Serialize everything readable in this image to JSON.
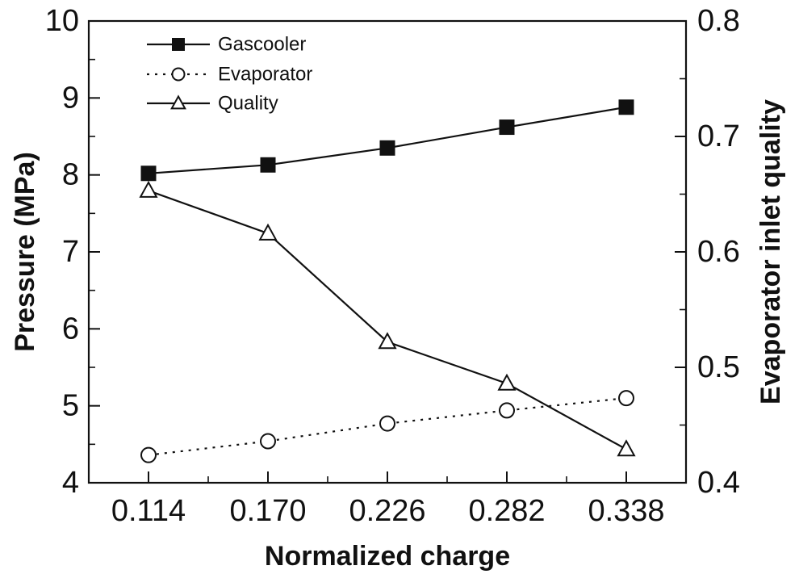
{
  "chart_data": {
    "type": "line",
    "title": "",
    "xlabel": "Normalized charge",
    "ylabel": "Pressure (MPa)",
    "y2label": "Evaporator inlet quality",
    "categories": [
      "0.114",
      "0.170",
      "0.226",
      "0.282",
      "0.338"
    ],
    "x": [
      0.114,
      0.17,
      0.226,
      0.282,
      0.338
    ],
    "xlim": [
      0.086,
      0.366
    ],
    "ylim": [
      4,
      10
    ],
    "y2lim": [
      0.4,
      0.8
    ],
    "y_ticks": [
      {
        "value": 4,
        "label": "4"
      },
      {
        "value": 5,
        "label": "5"
      },
      {
        "value": 6,
        "label": "6"
      },
      {
        "value": 7,
        "label": "7"
      },
      {
        "value": 8,
        "label": "8"
      },
      {
        "value": 9,
        "label": "9"
      },
      {
        "value": 10,
        "label": "10"
      }
    ],
    "y2_ticks": [
      {
        "value": 0.4,
        "label": "0.4"
      },
      {
        "value": 0.5,
        "label": "0.5"
      },
      {
        "value": 0.6,
        "label": "0.6"
      },
      {
        "value": 0.7,
        "label": "0.7"
      },
      {
        "value": 0.8,
        "label": "0.8"
      }
    ],
    "grid": false,
    "legend_position": "top-left",
    "series": [
      {
        "name": "Gascooler",
        "axis": "left",
        "marker": "filled-square",
        "line_style": "solid",
        "values": [
          8.02,
          8.13,
          8.35,
          8.62,
          8.88
        ]
      },
      {
        "name": "Evaporator",
        "axis": "left",
        "marker": "open-circle",
        "line_style": "dotted",
        "values": [
          4.36,
          4.54,
          4.77,
          4.94,
          5.1
        ]
      },
      {
        "name": "Quality",
        "axis": "right",
        "marker": "open-triangle",
        "line_style": "solid",
        "values": [
          0.653,
          0.616,
          0.522,
          0.486,
          0.429
        ]
      }
    ],
    "colors": {
      "line": "#111111",
      "marker_fill": "#ffffff",
      "marker_solid": "#111111"
    }
  }
}
